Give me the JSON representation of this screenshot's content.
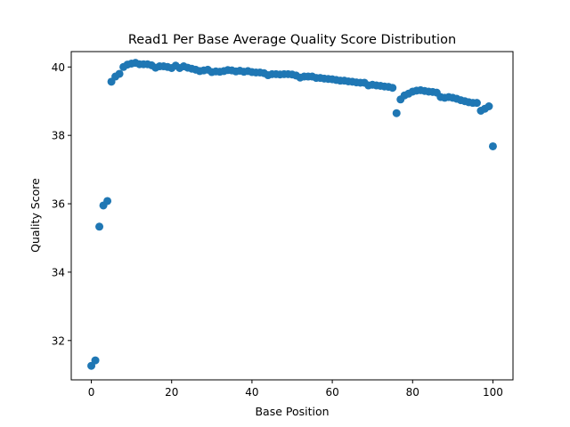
{
  "chart_data": {
    "type": "scatter",
    "title": "Read1 Per Base Average Quality Score Distribution",
    "xlabel": "Base Position",
    "ylabel": "Quality Score",
    "xlim": [
      -5,
      105
    ],
    "ylim": [
      30.85,
      40.45
    ],
    "xticks": [
      0,
      20,
      40,
      60,
      80,
      100
    ],
    "yticks": [
      32,
      34,
      36,
      38,
      40
    ],
    "xtick_labels": [
      "0",
      "20",
      "40",
      "60",
      "80",
      "100"
    ],
    "ytick_labels": [
      "32",
      "34",
      "36",
      "38",
      "40"
    ],
    "grid": false,
    "marker_color": "#1f77b4",
    "series": [
      {
        "x": [
          0,
          1,
          2,
          3,
          4,
          5,
          6,
          7,
          8,
          9,
          10,
          11,
          12,
          13,
          14,
          15,
          16,
          17,
          18,
          19,
          20,
          21,
          22,
          23,
          24,
          25,
          26,
          27,
          28,
          29,
          30,
          31,
          32,
          33,
          34,
          35,
          36,
          37,
          38,
          39,
          40,
          41,
          42,
          43,
          44,
          45,
          46,
          47,
          48,
          49,
          50,
          51,
          52,
          53,
          54,
          55,
          56,
          57,
          58,
          59,
          60,
          61,
          62,
          63,
          64,
          65,
          66,
          67,
          68,
          69,
          70,
          71,
          72,
          73,
          74,
          75,
          76,
          77,
          78,
          79,
          80,
          81,
          82,
          83,
          84,
          85,
          86,
          87,
          88,
          89,
          90,
          91,
          92,
          93,
          94,
          95,
          96,
          97,
          98,
          99,
          100
        ],
        "y": [
          31.26,
          31.42,
          35.33,
          35.95,
          36.08,
          39.57,
          39.72,
          39.8,
          40.0,
          40.07,
          40.1,
          40.12,
          40.08,
          40.08,
          40.08,
          40.05,
          39.98,
          40.02,
          40.02,
          40.0,
          39.97,
          40.04,
          39.97,
          40.02,
          39.98,
          39.95,
          39.92,
          39.88,
          39.9,
          39.92,
          39.85,
          39.87,
          39.86,
          39.88,
          39.91,
          39.9,
          39.87,
          39.89,
          39.86,
          39.88,
          39.85,
          39.84,
          39.84,
          39.82,
          39.76,
          39.79,
          39.79,
          39.78,
          39.79,
          39.79,
          39.78,
          39.75,
          39.69,
          39.72,
          39.72,
          39.72,
          39.68,
          39.68,
          39.66,
          39.65,
          39.64,
          39.62,
          39.6,
          39.6,
          39.58,
          39.57,
          39.55,
          39.54,
          39.54,
          39.46,
          39.48,
          39.46,
          39.45,
          39.43,
          39.42,
          39.39,
          38.65,
          39.05,
          39.17,
          39.22,
          39.28,
          39.31,
          39.32,
          39.3,
          39.28,
          39.27,
          39.25,
          39.12,
          39.1,
          39.12,
          39.1,
          39.07,
          39.03,
          39.0,
          38.97,
          38.95,
          38.95,
          38.72,
          38.78,
          38.85,
          37.68
        ]
      }
    ]
  }
}
